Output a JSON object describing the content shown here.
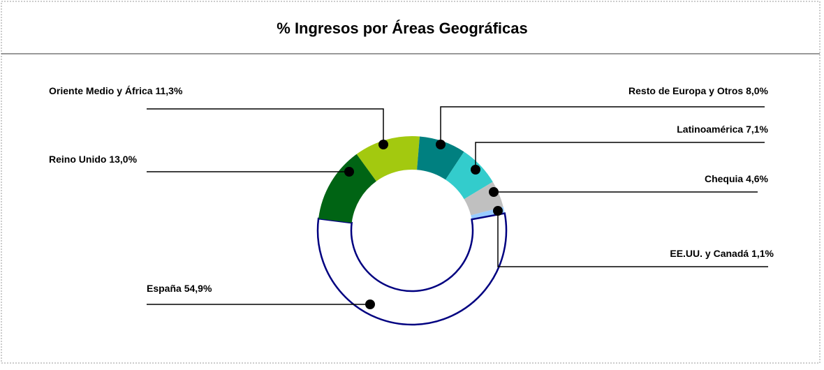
{
  "chart_data": {
    "type": "donut",
    "title": "% Ingresos por Áreas Geográficas",
    "categories": [
      "Oriente Medio y África",
      "Resto de Europa y Otros",
      "Latinoamérica",
      "Chequia",
      "EE.UU. y Canadá",
      "España",
      "Reino Unido"
    ],
    "values": [
      11.3,
      8.0,
      7.1,
      4.6,
      1.1,
      54.9,
      13.0
    ],
    "value_labels": [
      "11,3%",
      "8,0%",
      "7,1%",
      "4,6%",
      "1,1%",
      "54,9%",
      "13,0%"
    ],
    "colors": [
      "#a3c90f",
      "#008080",
      "#33cccc",
      "#c0c0c0",
      "#99ccff",
      "#ffffff",
      "#006414"
    ],
    "edge_color": "#000080"
  }
}
